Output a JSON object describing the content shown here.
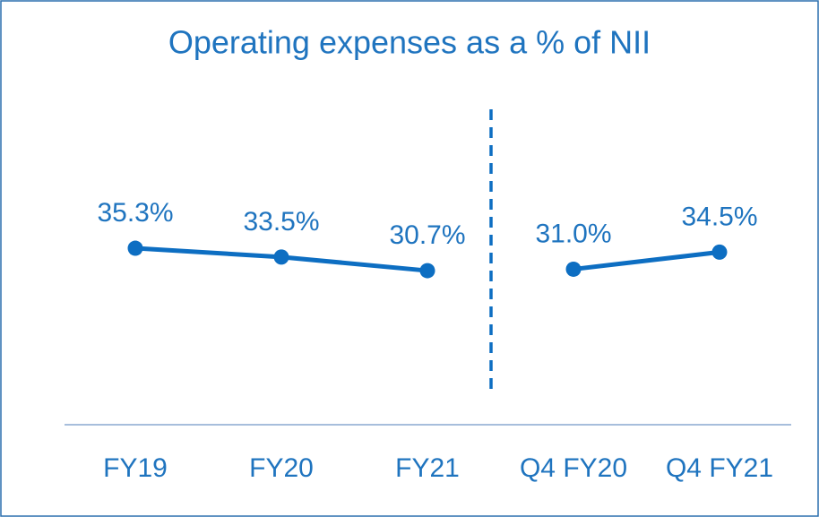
{
  "chart_data": {
    "type": "line",
    "title": "Operating expenses as a % of NII",
    "categories": [
      "FY19",
      "FY20",
      "FY21",
      "Q4 FY20",
      "Q4 FY21"
    ],
    "series": [
      {
        "color": "#0d6ec2",
        "values": [
          35.3,
          33.5,
          30.7,
          null,
          null
        ],
        "value_labels": [
          "35.3%",
          "33.5%",
          "30.7%",
          null,
          null
        ]
      },
      {
        "color": "#0d6ec2",
        "values": [
          null,
          null,
          null,
          31.0,
          34.5
        ],
        "value_labels": [
          null,
          null,
          null,
          "31.0%",
          "34.5%"
        ]
      }
    ],
    "ylim": [
      0,
      40
    ]
  }
}
